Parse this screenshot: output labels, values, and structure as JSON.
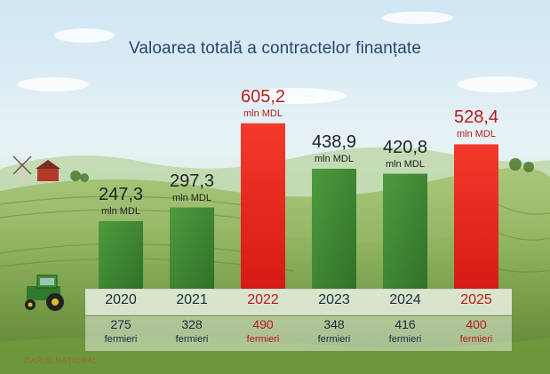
{
  "chart_data": {
    "type": "bar",
    "title": "Valoarea totală a contractelor finanțate",
    "categories": [
      "2020",
      "2021",
      "2022",
      "2023",
      "2024",
      "2025"
    ],
    "values": [
      247.3,
      297.3,
      605.2,
      438.9,
      420.8,
      528.4
    ],
    "value_labels": [
      "247,3",
      "297,3",
      "605,2",
      "438,9",
      "420,8",
      "528,4"
    ],
    "unit_label": "mln MDL",
    "highlight": [
      false,
      false,
      true,
      false,
      false,
      true
    ],
    "farmer_counts": [
      "275",
      "328",
      "490",
      "348",
      "416",
      "400"
    ],
    "farmer_label": "fermieri",
    "ylim": [
      0,
      650
    ],
    "grid": false,
    "legend": "none"
  },
  "colors": {
    "bar_green": "#3f8a33",
    "bar_red": "#e8251d",
    "title": "#26466e",
    "value_text": "#222222",
    "value_text_highlight": "#b51c1c"
  },
  "watermark": "ZIARUL NAȚIONAL"
}
